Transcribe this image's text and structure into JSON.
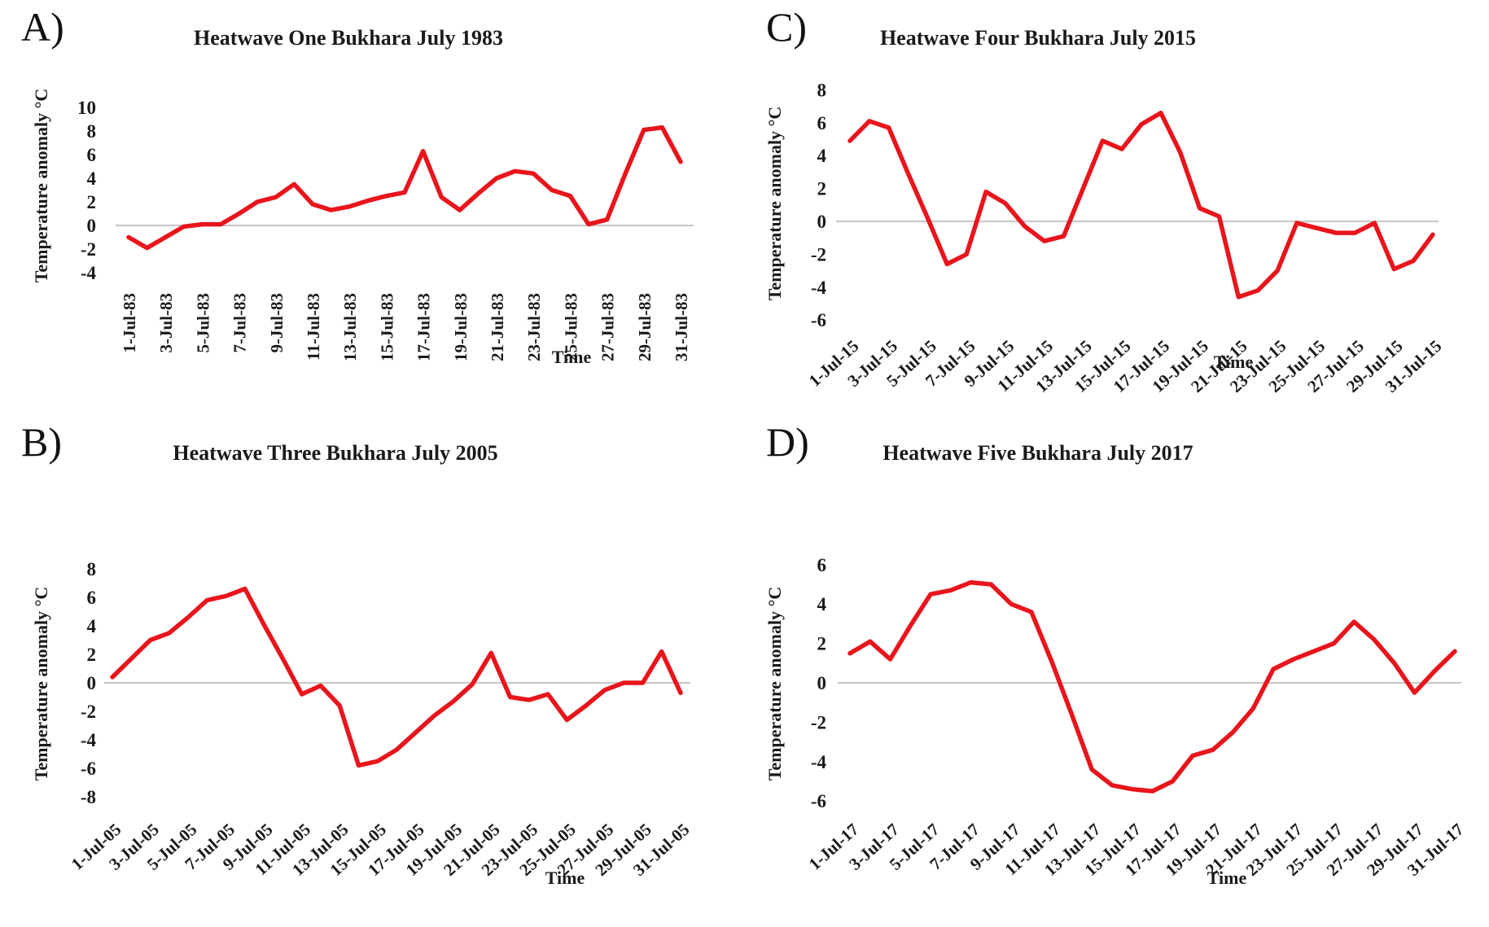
{
  "figure": {
    "background": "#ffffff",
    "line_color": "#e8151c",
    "zero_line_color": "#c9c9c9",
    "panels_order": [
      "A) top-left",
      "C) top-right",
      "B) bottom-left",
      "D) bottom-right"
    ]
  },
  "chart_data": [
    {
      "panel_letter": "A)",
      "type": "line",
      "title": "Heatwave One Bukhara July 1983",
      "xlabel": "Time",
      "ylabel": "Temperature anomaly °C",
      "line_color": "#e8151c",
      "legend": "none",
      "grid": "zero-line-only",
      "ylim": [
        -4,
        10
      ],
      "yticks": [
        10,
        8,
        6,
        4,
        2,
        0,
        -2,
        -4
      ],
      "x_tick_style": "vertical",
      "x_tick_labels": [
        "1-Jul-83",
        "3-Jul-83",
        "5-Jul-83",
        "7-Jul-83",
        "9-Jul-83",
        "11-Jul-83",
        "13-Jul-83",
        "15-Jul-83",
        "17-Jul-83",
        "19-Jul-83",
        "21-Jul-83",
        "23-Jul-83",
        "25-Jul-83",
        "27-Jul-83",
        "29-Jul-83",
        "31-Jul-83"
      ],
      "x_days": [
        1,
        2,
        3,
        4,
        5,
        6,
        7,
        8,
        9,
        10,
        11,
        12,
        13,
        14,
        15,
        16,
        17,
        18,
        19,
        20,
        21,
        22,
        23,
        24,
        25,
        26,
        27,
        28,
        29,
        30,
        31
      ],
      "values": [
        -1.0,
        -1.9,
        -1.0,
        -0.1,
        0.1,
        0.1,
        1.0,
        2.0,
        2.4,
        3.5,
        1.8,
        1.3,
        1.6,
        2.1,
        2.5,
        2.8,
        6.3,
        2.4,
        1.3,
        2.7,
        4.0,
        4.6,
        4.4,
        3.0,
        2.5,
        0.1,
        0.5,
        4.4,
        8.1,
        8.3,
        5.4
      ]
    },
    {
      "panel_letter": "C)",
      "type": "line",
      "title": "Heatwave Four Bukhara July 2015",
      "xlabel": "Time",
      "ylabel": "Temperature anomaly °C",
      "line_color": "#e8151c",
      "legend": "none",
      "grid": "zero-line-only",
      "ylim": [
        -6,
        8
      ],
      "yticks": [
        8,
        6,
        4,
        2,
        0,
        -2,
        -4,
        -6
      ],
      "x_tick_style": "diagonal",
      "x_tick_labels": [
        "1-Jul-15",
        "3-Jul-15",
        "5-Jul-15",
        "7-Jul-15",
        "9-Jul-15",
        "11-Jul-15",
        "13-Jul-15",
        "15-Jul-15",
        "17-Jul-15",
        "19-Jul-15",
        "21-Jul-15",
        "23-Jul-15",
        "25-Jul-15",
        "27-Jul-15",
        "29-Jul-15",
        "31-Jul-15"
      ],
      "x_days": [
        1,
        2,
        3,
        4,
        5,
        6,
        7,
        8,
        9,
        10,
        11,
        12,
        13,
        14,
        15,
        16,
        17,
        18,
        19,
        20,
        21,
        22,
        23,
        24,
        25,
        26,
        27,
        28,
        29,
        30,
        31
      ],
      "values": [
        4.9,
        6.1,
        5.7,
        2.9,
        0.2,
        -2.6,
        -2.0,
        1.8,
        1.1,
        -0.3,
        -1.2,
        -0.9,
        2.0,
        4.9,
        4.4,
        5.9,
        6.6,
        4.2,
        0.8,
        0.3,
        -4.6,
        -4.2,
        -3.0,
        -0.1,
        -0.4,
        -0.7,
        -0.7,
        -0.1,
        -2.9,
        -2.4,
        -0.8
      ]
    },
    {
      "panel_letter": "B)",
      "type": "line",
      "title": "Heatwave Three Bukhara July 2005",
      "xlabel": "Time",
      "ylabel": "Temperature anomaly °C",
      "line_color": "#e8151c",
      "legend": "none",
      "grid": "zero-line-only",
      "ylim": [
        -8,
        8
      ],
      "yticks": [
        8,
        6,
        4,
        2,
        0,
        -2,
        -4,
        -6,
        -8
      ],
      "x_tick_style": "diagonal",
      "x_tick_labels": [
        "1-Jul-05",
        "3-Jul-05",
        "5-Jul-05",
        "7-Jul-05",
        "9-Jul-05",
        "11-Jul-05",
        "13-Jul-05",
        "15-Jul-05",
        "17-Jul-05",
        "19-Jul-05",
        "21-Jul-05",
        "23-Jul-05",
        "25-Jul-05",
        "27-Jul-05",
        "29-Jul-05",
        "31-Jul-05"
      ],
      "x_days": [
        1,
        2,
        3,
        4,
        5,
        6,
        7,
        8,
        9,
        10,
        11,
        12,
        13,
        14,
        15,
        16,
        17,
        18,
        19,
        20,
        21,
        22,
        23,
        24,
        25,
        26,
        27,
        28,
        29,
        30,
        31
      ],
      "values": [
        0.4,
        1.7,
        3.0,
        3.5,
        4.6,
        5.8,
        6.1,
        6.6,
        4.1,
        1.7,
        -0.8,
        -0.2,
        -1.6,
        -5.8,
        -5.5,
        -4.7,
        -3.5,
        -2.3,
        -1.3,
        -0.1,
        2.1,
        -1.0,
        -1.2,
        -0.8,
        -2.6,
        -1.6,
        -0.5,
        0.0,
        0.0,
        2.2,
        -0.7
      ]
    },
    {
      "panel_letter": "D)",
      "type": "line",
      "title": "Heatwave Five Bukhara July 2017",
      "xlabel": "Time",
      "ylabel": "Temperature anomaly °C",
      "line_color": "#e8151c",
      "legend": "none",
      "grid": "zero-line-only",
      "ylim": [
        -6,
        6
      ],
      "yticks": [
        6,
        4,
        2,
        0,
        -2,
        -4,
        -6
      ],
      "x_tick_style": "diagonal",
      "x_tick_labels": [
        "1-Jul-17",
        "3-Jul-17",
        "5-Jul-17",
        "7-Jul-17",
        "9-Jul-17",
        "11-Jul-17",
        "13-Jul-17",
        "15-Jul-17",
        "17-Jul-17",
        "19-Jul-17",
        "21-Jul-17",
        "23-Jul-17",
        "25-Jul-17",
        "27-Jul-17",
        "29-Jul-17",
        "31-Jul-17"
      ],
      "x_days": [
        1,
        2,
        3,
        4,
        5,
        6,
        7,
        8,
        9,
        10,
        11,
        12,
        13,
        14,
        15,
        16,
        17,
        18,
        19,
        20,
        21,
        22,
        23,
        24,
        25,
        26,
        27,
        28,
        29,
        30,
        31
      ],
      "values": [
        1.5,
        2.1,
        1.2,
        2.9,
        4.5,
        4.7,
        5.1,
        5.0,
        4.0,
        3.6,
        1.1,
        -1.6,
        -4.4,
        -5.2,
        -5.4,
        -5.5,
        -5.0,
        -3.7,
        -3.4,
        -2.5,
        -1.3,
        0.7,
        1.2,
        1.6,
        2.0,
        3.1,
        2.2,
        1.0,
        -0.5,
        0.6,
        1.6
      ]
    }
  ]
}
